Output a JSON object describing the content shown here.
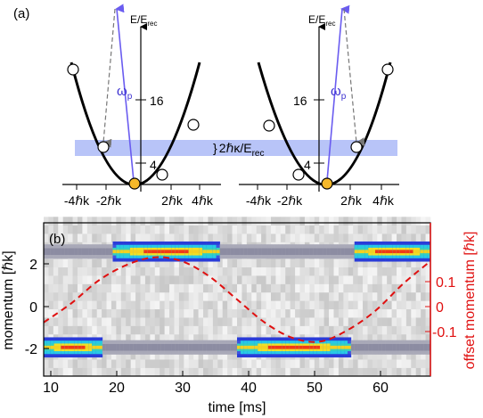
{
  "panel_a": {
    "label": "(a)",
    "y_axis_label_main": "E/E",
    "y_axis_label_sub": "rec",
    "y_ticks": [
      "4",
      "16"
    ],
    "x_ticks": [
      "-4ℏk",
      "-2ℏk",
      "2ℏk",
      "4ℏk"
    ],
    "pump_label_main": "ω",
    "pump_label_sub": "p",
    "band_label_main": "2ℏκ/E",
    "band_label_sub": "rec",
    "colors": {
      "parabola": "#000000",
      "pump_arrow": "#6a5cf0",
      "band": "#b8c4f8",
      "ground_state": "#f5b82a"
    }
  },
  "panel_b": {
    "label": "(b)",
    "x_axis_label": "time [ms]",
    "y_axis_label": "momentum [ℏk]",
    "y2_axis_label": "offset momentum [ℏk]",
    "x_ticks": [
      "10",
      "20",
      "30",
      "40",
      "50",
      "60"
    ],
    "y_ticks": [
      "2",
      "0",
      "-2"
    ],
    "y2_ticks": [
      "0.1",
      "0",
      "-0.1"
    ],
    "colors": {
      "offset_curve": "#e01010",
      "right_axis": "#e01010"
    }
  },
  "chart_data": {
    "type": "heatmap",
    "xlabel": "time [ms]",
    "ylabel": "momentum [ℏk]",
    "y2label": "offset momentum [ℏk]",
    "xlim": [
      9,
      65
    ],
    "ylim": [
      -3.2,
      3.2
    ],
    "y2lim": [
      -0.2,
      0.2
    ],
    "offset_curve": {
      "style": "dashed",
      "x": [
        9,
        13,
        17,
        21,
        25,
        29,
        33,
        37,
        41,
        45,
        49,
        53,
        57,
        61,
        65
      ],
      "y": [
        -0.06,
        -0.01,
        0.05,
        0.09,
        0.11,
        0.1,
        0.06,
        0.0,
        -0.06,
        -0.1,
        -0.11,
        -0.08,
        -0.03,
        0.04,
        0.1
      ]
    },
    "population_bands": [
      {
        "momentum": 2,
        "strong_intervals": [
          [
            19,
            34
          ],
          [
            54,
            65
          ]
        ]
      },
      {
        "momentum": -2,
        "strong_intervals": [
          [
            9,
            17
          ],
          [
            37,
            53
          ]
        ]
      }
    ]
  }
}
